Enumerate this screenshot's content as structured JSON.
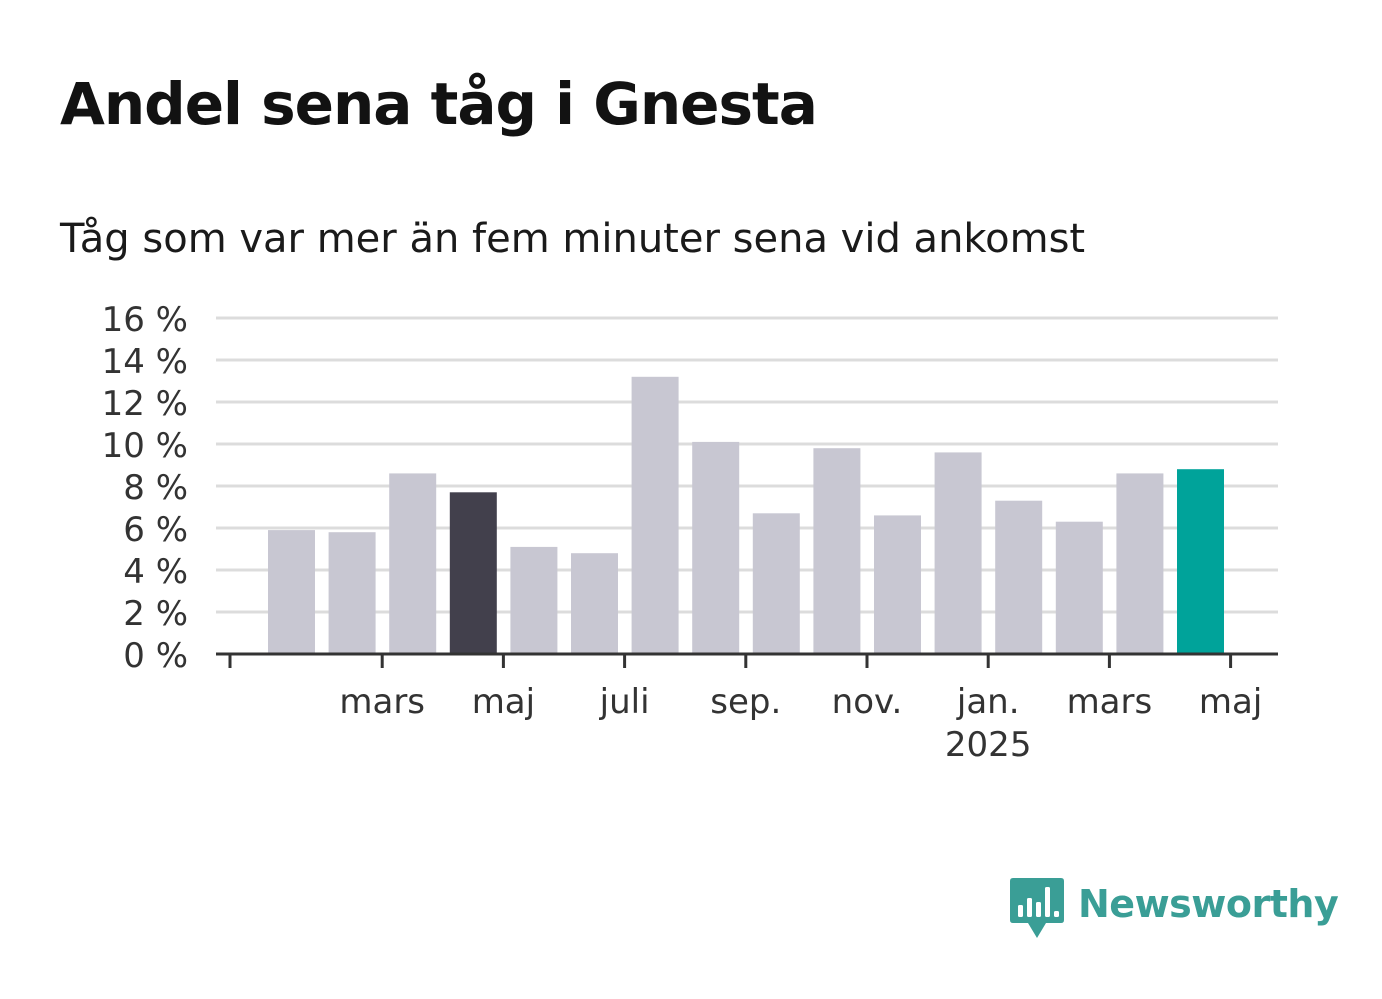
{
  "title": "Andel sena tåg i Gnesta",
  "subtitle": "Tåg som var mer än fem minuter sena vid ankomst",
  "brand": {
    "name": "Newsworthy",
    "logo_icon": "bar-chart-speech-bubble-icon",
    "color": "#3a9e96"
  },
  "chart_data": {
    "type": "bar",
    "title": "Andel sena tåg i Gnesta",
    "subtitle": "Tåg som var mer än fem minuter sena vid ankomst",
    "unit": "%",
    "ylim": [
      0,
      16
    ],
    "yticks": [
      0,
      2,
      4,
      6,
      8,
      10,
      12,
      14,
      16
    ],
    "ytick_labels": [
      "0 %",
      "2 %",
      "4 %",
      "6 %",
      "8 %",
      "10 %",
      "12 %",
      "14 %",
      "16 %"
    ],
    "grid": true,
    "categories": [
      "2024-01",
      "2024-02",
      "2024-03",
      "2024-04",
      "2024-05",
      "2024-06",
      "2024-07",
      "2024-08",
      "2024-09",
      "2024-10",
      "2024-11",
      "2024-12",
      "2025-01",
      "2025-02",
      "2025-03",
      "2025-04",
      "2025-05"
    ],
    "values": [
      5.9,
      5.8,
      8.6,
      7.7,
      5.1,
      4.8,
      13.2,
      10.1,
      6.7,
      9.8,
      6.6,
      9.6,
      7.3,
      6.3,
      8.6,
      8.8,
      null
    ],
    "bar_colors": [
      "#c8c7d2",
      "#c8c7d2",
      "#c8c7d2",
      "#42404c",
      "#c8c7d2",
      "#c8c7d2",
      "#c8c7d2",
      "#c8c7d2",
      "#c8c7d2",
      "#c8c7d2",
      "#c8c7d2",
      "#c8c7d2",
      "#c8c7d2",
      "#c8c7d2",
      "#c8c7d2",
      "#00a39a",
      null
    ],
    "xtick_labels": [
      {
        "category": "2024-01",
        "label": ""
      },
      {
        "category": "2024-03",
        "label": "mars"
      },
      {
        "category": "2024-05",
        "label": "maj"
      },
      {
        "category": "2024-07",
        "label": "juli"
      },
      {
        "category": "2024-09",
        "label": "sep."
      },
      {
        "category": "2024-11",
        "label": "nov."
      },
      {
        "category": "2025-01",
        "label": "jan.",
        "label2": "2025"
      },
      {
        "category": "2025-03",
        "label": "mars"
      },
      {
        "category": "2025-05",
        "label": "maj"
      }
    ]
  }
}
